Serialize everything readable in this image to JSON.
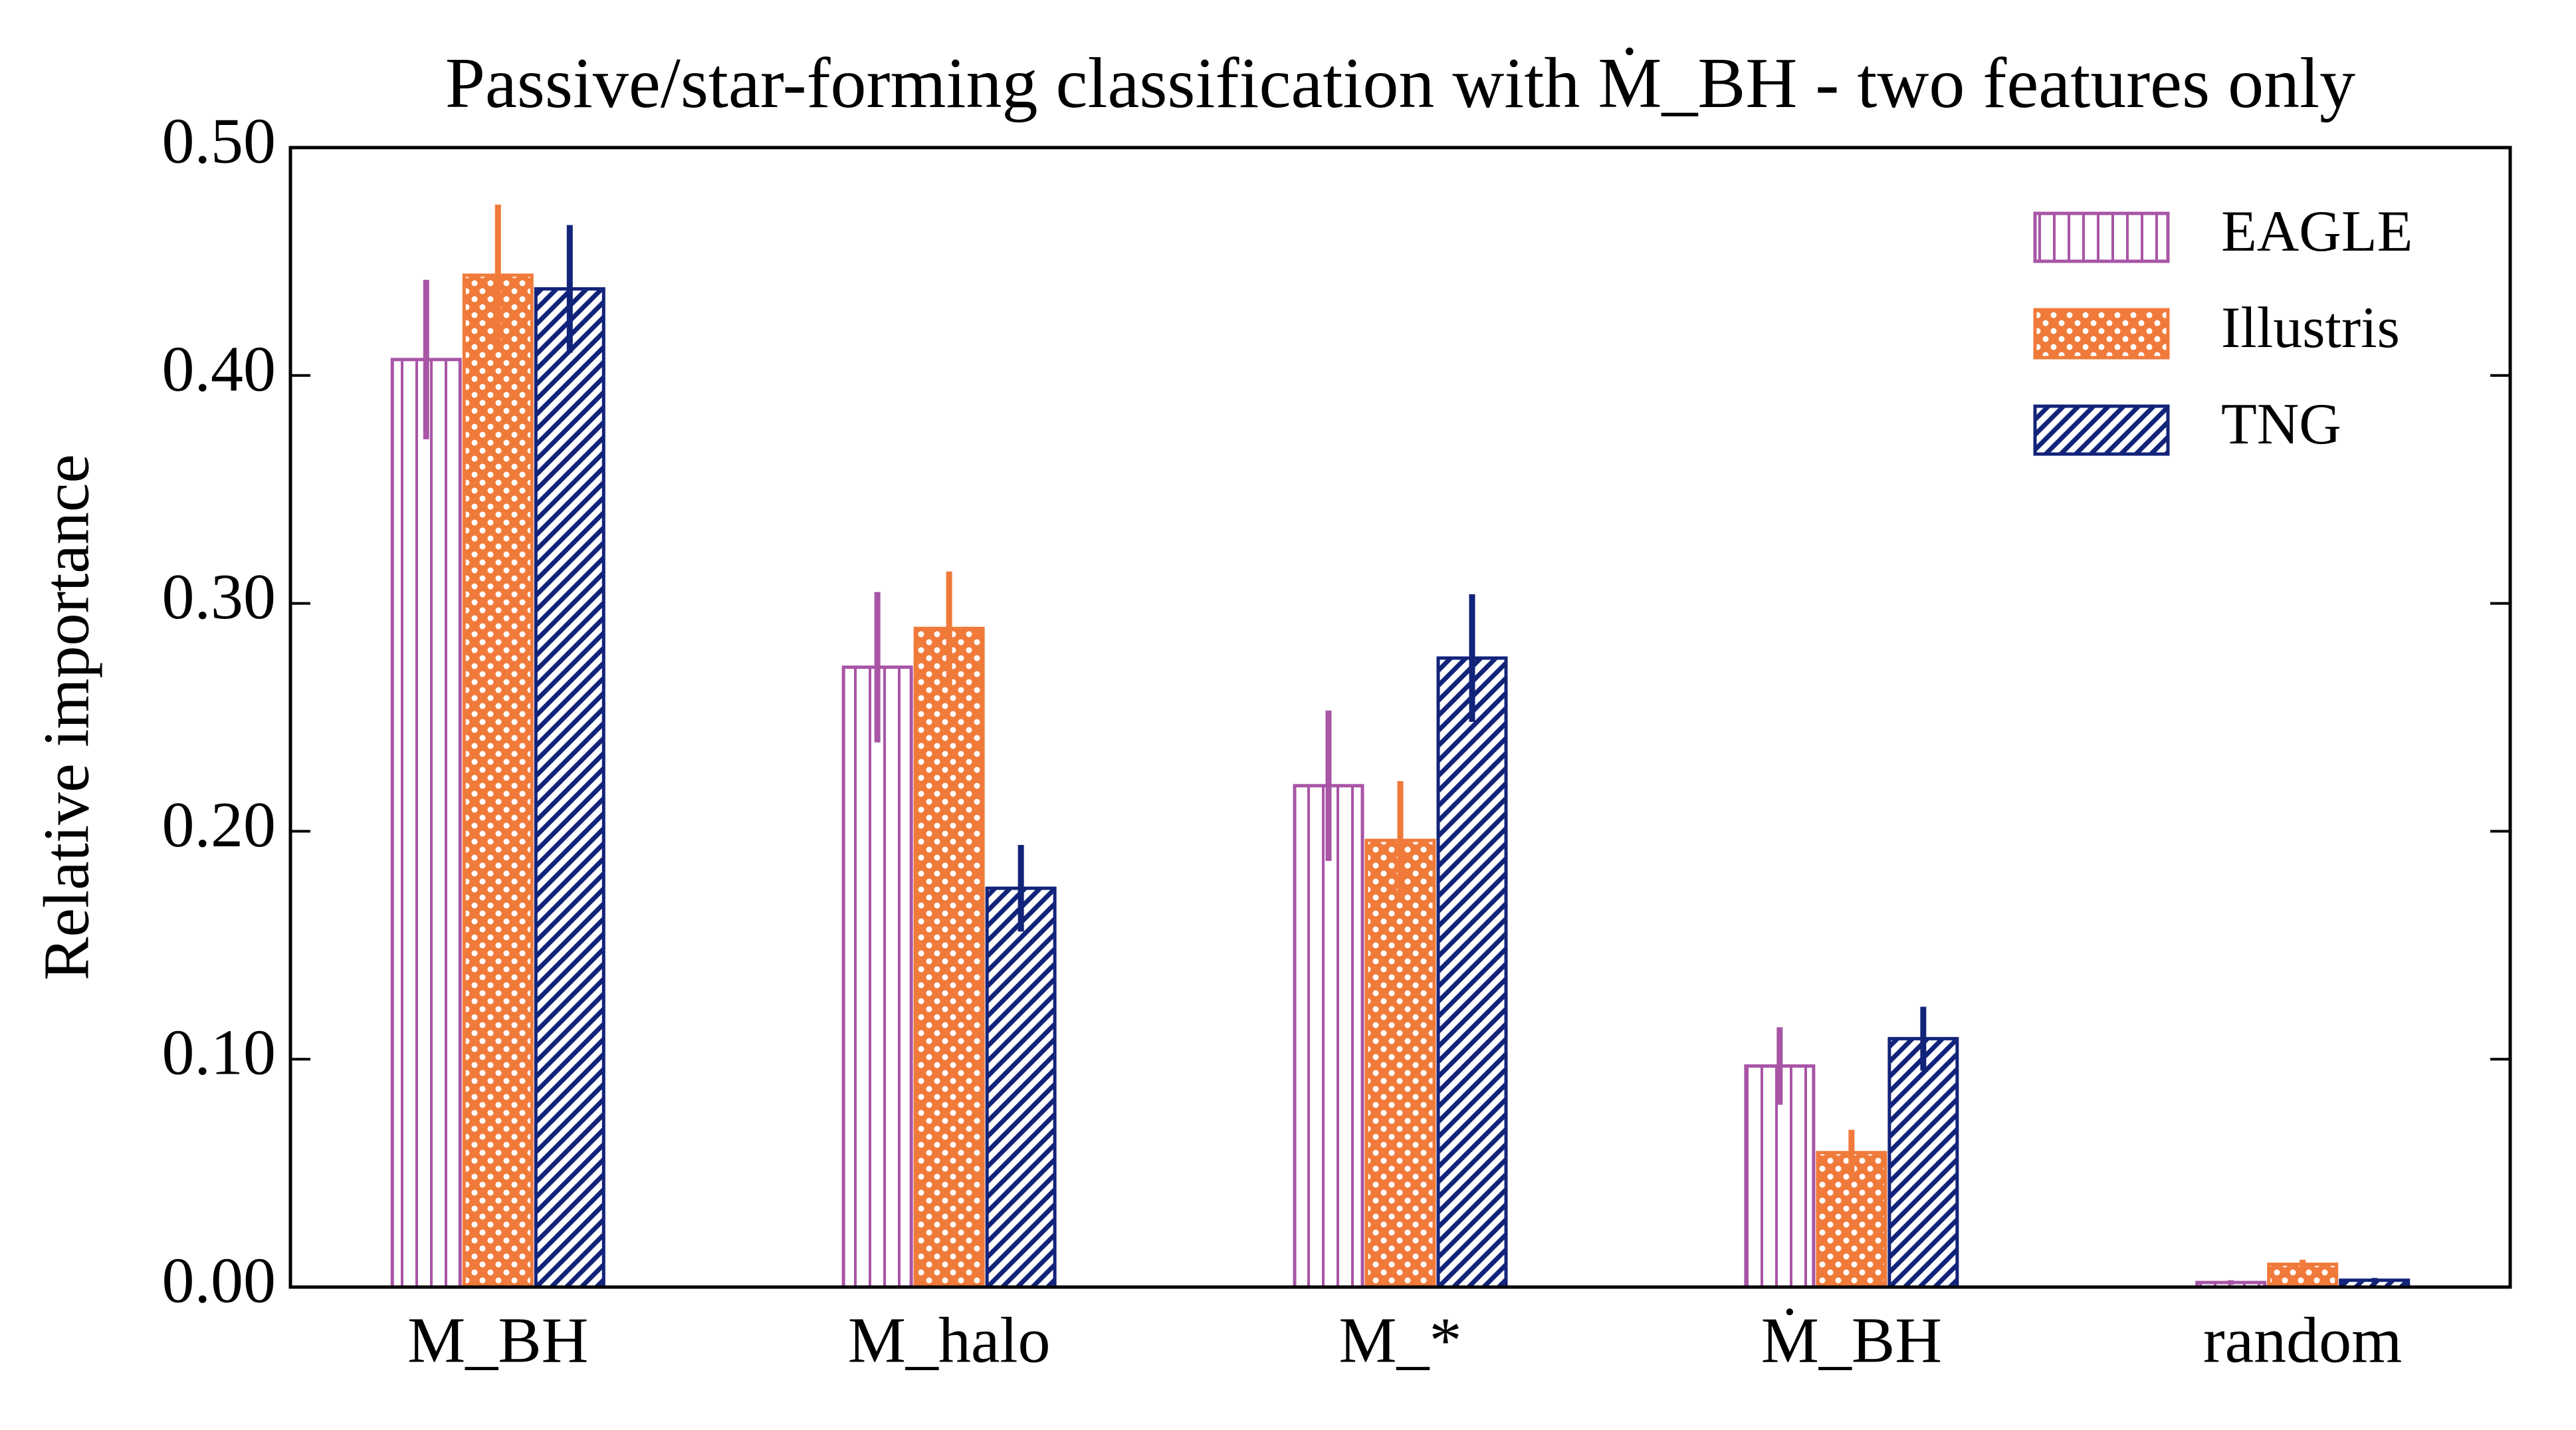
{
  "chart_data": {
    "type": "bar",
    "title": "Passive/star-forming classification with Ṁ_BH - two features only",
    "ylabel": "Relative importance",
    "categories": [
      "M_BH",
      "M_halo",
      "M_*",
      "Ṁ_BH",
      "random"
    ],
    "series": [
      {
        "name": "EAGLE",
        "color": "#a855a6",
        "hatch": "|||",
        "values": [
          0.407,
          0.272,
          0.22,
          0.097,
          0.002
        ],
        "errors": [
          0.035,
          0.033,
          0.033,
          0.017,
          0.001
        ]
      },
      {
        "name": "Illustris",
        "color": "#f07a3a",
        "hatch": "oo",
        "values": [
          0.444,
          0.289,
          0.196,
          0.059,
          0.01
        ],
        "errors": [
          0.031,
          0.025,
          0.026,
          0.01,
          0.002
        ]
      },
      {
        "name": "TNG",
        "color": "#12237a",
        "hatch": "////",
        "values": [
          0.438,
          0.175,
          0.276,
          0.109,
          0.003
        ],
        "errors": [
          0.028,
          0.019,
          0.028,
          0.014,
          0.001
        ]
      }
    ],
    "ylim": [
      0,
      0.5
    ],
    "yticks": [
      {
        "value": 0,
        "label": "0.00"
      },
      {
        "value": 0.1,
        "label": "0.10"
      },
      {
        "value": 0.2,
        "label": "0.20"
      },
      {
        "value": 0.3,
        "label": "0.30"
      },
      {
        "value": 0.4,
        "label": "0.40"
      },
      {
        "value": 0.5,
        "label": "0.50"
      }
    ],
    "legend": "upper right"
  }
}
